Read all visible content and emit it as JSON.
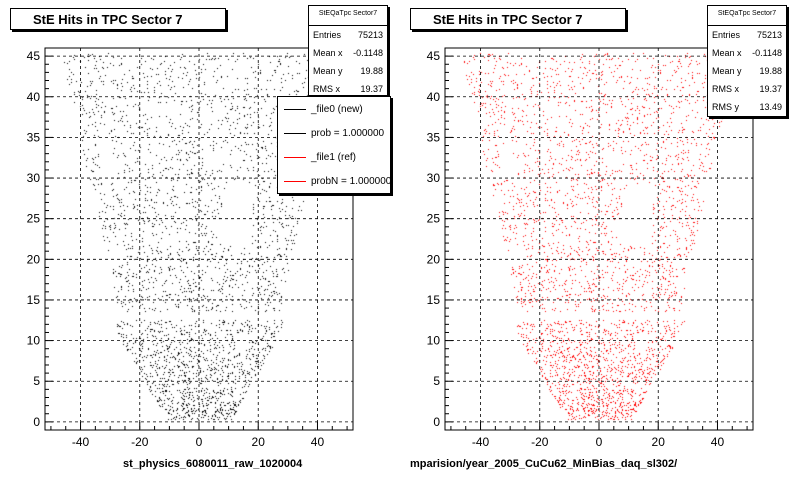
{
  "chart_data": [
    {
      "type": "heatmap",
      "title": "StE Hits in TPC Sector 7",
      "xlabel": "st_physics_6080011_raw_1020004",
      "ylabel": "",
      "xlim": [
        -52,
        52
      ],
      "ylim": [
        -1,
        46
      ],
      "x_ticks": [
        -40,
        -20,
        0,
        20,
        40
      ],
      "y_ticks": [
        0,
        5,
        10,
        15,
        20,
        25,
        30,
        35,
        40,
        45
      ],
      "grid": true,
      "marker_color": "#000000",
      "stats": {
        "title": "StEQaTpc Sector7",
        "rows": [
          {
            "label": "Entries",
            "value": "75213"
          },
          {
            "label": "Mean x",
            "value": "-0.1148"
          },
          {
            "label": "Mean y",
            "value": "19.88"
          },
          {
            "label": "RMS x",
            "value": "19.37"
          }
        ]
      },
      "legend": {
        "placement": "top-right",
        "entries": [
          {
            "label": "_file0 (new)",
            "color": "#000000"
          },
          {
            "label": "prob = 1.000000",
            "color": "#000000"
          },
          {
            "label": "_file1 (ref)",
            "color": "#ff0000"
          },
          {
            "label": "probN = 1.000000",
            "color": "#ff0000"
          }
        ]
      }
    },
    {
      "type": "heatmap",
      "title": "StE Hits in TPC Sector 7",
      "xlabel": "mparision/year_2005_CuCu62_MinBias_daq_sl302/",
      "ylabel": "",
      "xlim": [
        -52,
        52
      ],
      "ylim": [
        -1,
        46
      ],
      "x_ticks": [
        -40,
        -20,
        0,
        20,
        40
      ],
      "y_ticks": [
        0,
        5,
        10,
        15,
        20,
        25,
        30,
        35,
        40,
        45
      ],
      "grid": true,
      "marker_color": "#ff0000",
      "stats": {
        "title": "StEQaTpc Sector7",
        "rows": [
          {
            "label": "Entries",
            "value": "75213"
          },
          {
            "label": "Mean x",
            "value": "-0.1148"
          },
          {
            "label": "Mean y",
            "value": "19.88"
          },
          {
            "label": "RMS x",
            "value": "19.37"
          },
          {
            "label": "RMS y",
            "value": "13.49"
          }
        ]
      }
    }
  ]
}
